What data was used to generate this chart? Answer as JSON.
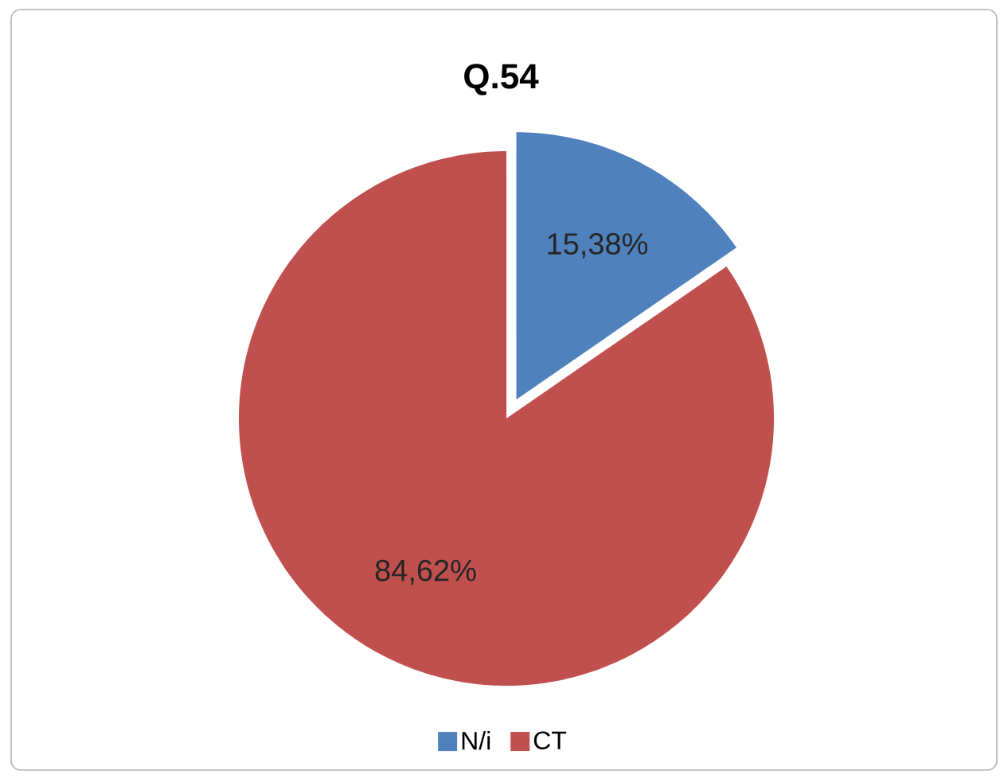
{
  "chart_data": {
    "type": "pie",
    "title": "Q.54",
    "categories": [
      "N/i",
      "CT"
    ],
    "values": [
      15.38,
      84.62
    ],
    "colors": [
      "#4f81bd",
      "#c0504d"
    ],
    "value_labels": [
      "15,38%",
      "84,62%"
    ],
    "legend": "bottom"
  }
}
